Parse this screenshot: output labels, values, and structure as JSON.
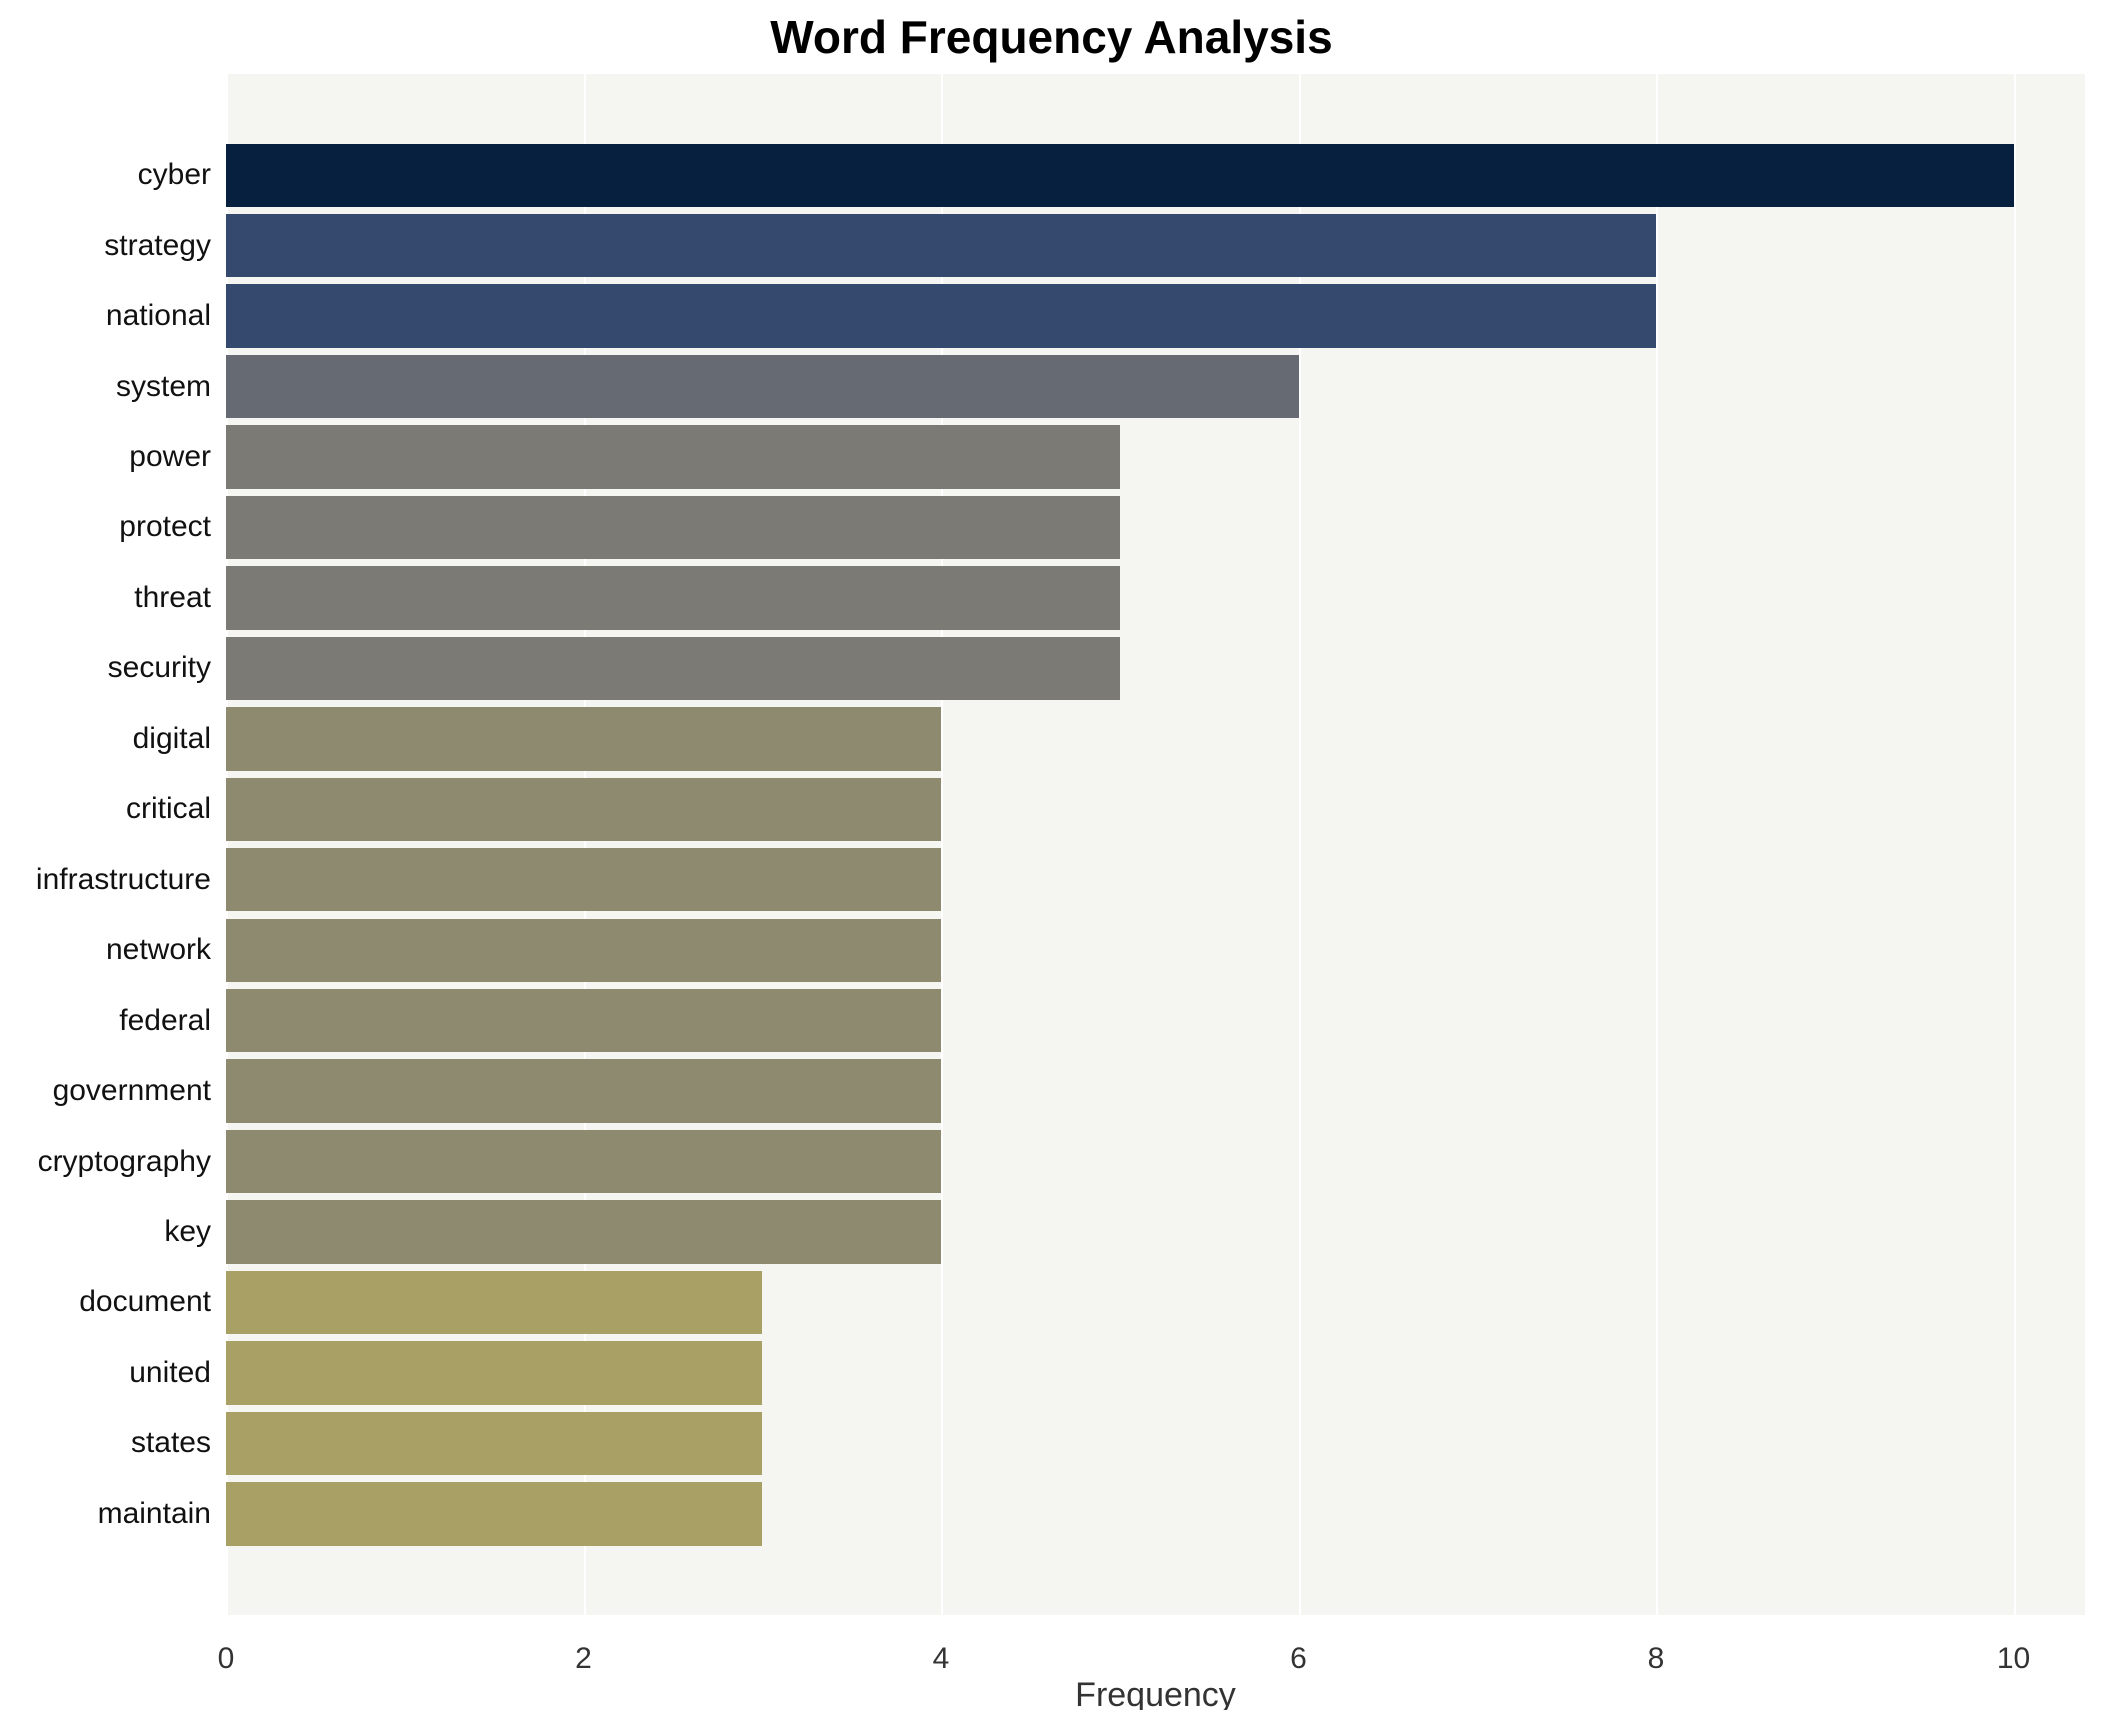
{
  "chart_data": {
    "type": "bar",
    "orientation": "horizontal",
    "title": "Word Frequency Analysis",
    "xlabel": "Frequency",
    "ylabel": "",
    "xlim": [
      0,
      10.4
    ],
    "xticks": [
      0,
      2,
      4,
      6,
      8,
      10
    ],
    "grid": true,
    "legend": false,
    "plot_bg": "#f5f5f2",
    "gridline_color": "#ffffff",
    "categories": [
      "cyber",
      "strategy",
      "national",
      "system",
      "power",
      "protect",
      "threat",
      "security",
      "digital",
      "critical",
      "infrastructure",
      "network",
      "federal",
      "government",
      "cryptography",
      "key",
      "document",
      "united",
      "states",
      "maintain"
    ],
    "values": [
      10,
      8,
      8,
      6,
      5,
      5,
      5,
      5,
      4,
      4,
      4,
      4,
      4,
      4,
      4,
      4,
      3,
      3,
      3,
      3
    ],
    "colors": [
      "#08203f",
      "#35486e",
      "#35486e",
      "#656a73",
      "#7b7a74",
      "#7b7a74",
      "#7b7a74",
      "#7b7a74",
      "#8e8a70",
      "#8e8a70",
      "#8e8a70",
      "#8e8a70",
      "#8e8a70",
      "#8e8a70",
      "#8e8a70",
      "#8e8a70",
      "#a9a065",
      "#a9a065",
      "#a9a065",
      "#a9a065"
    ]
  }
}
